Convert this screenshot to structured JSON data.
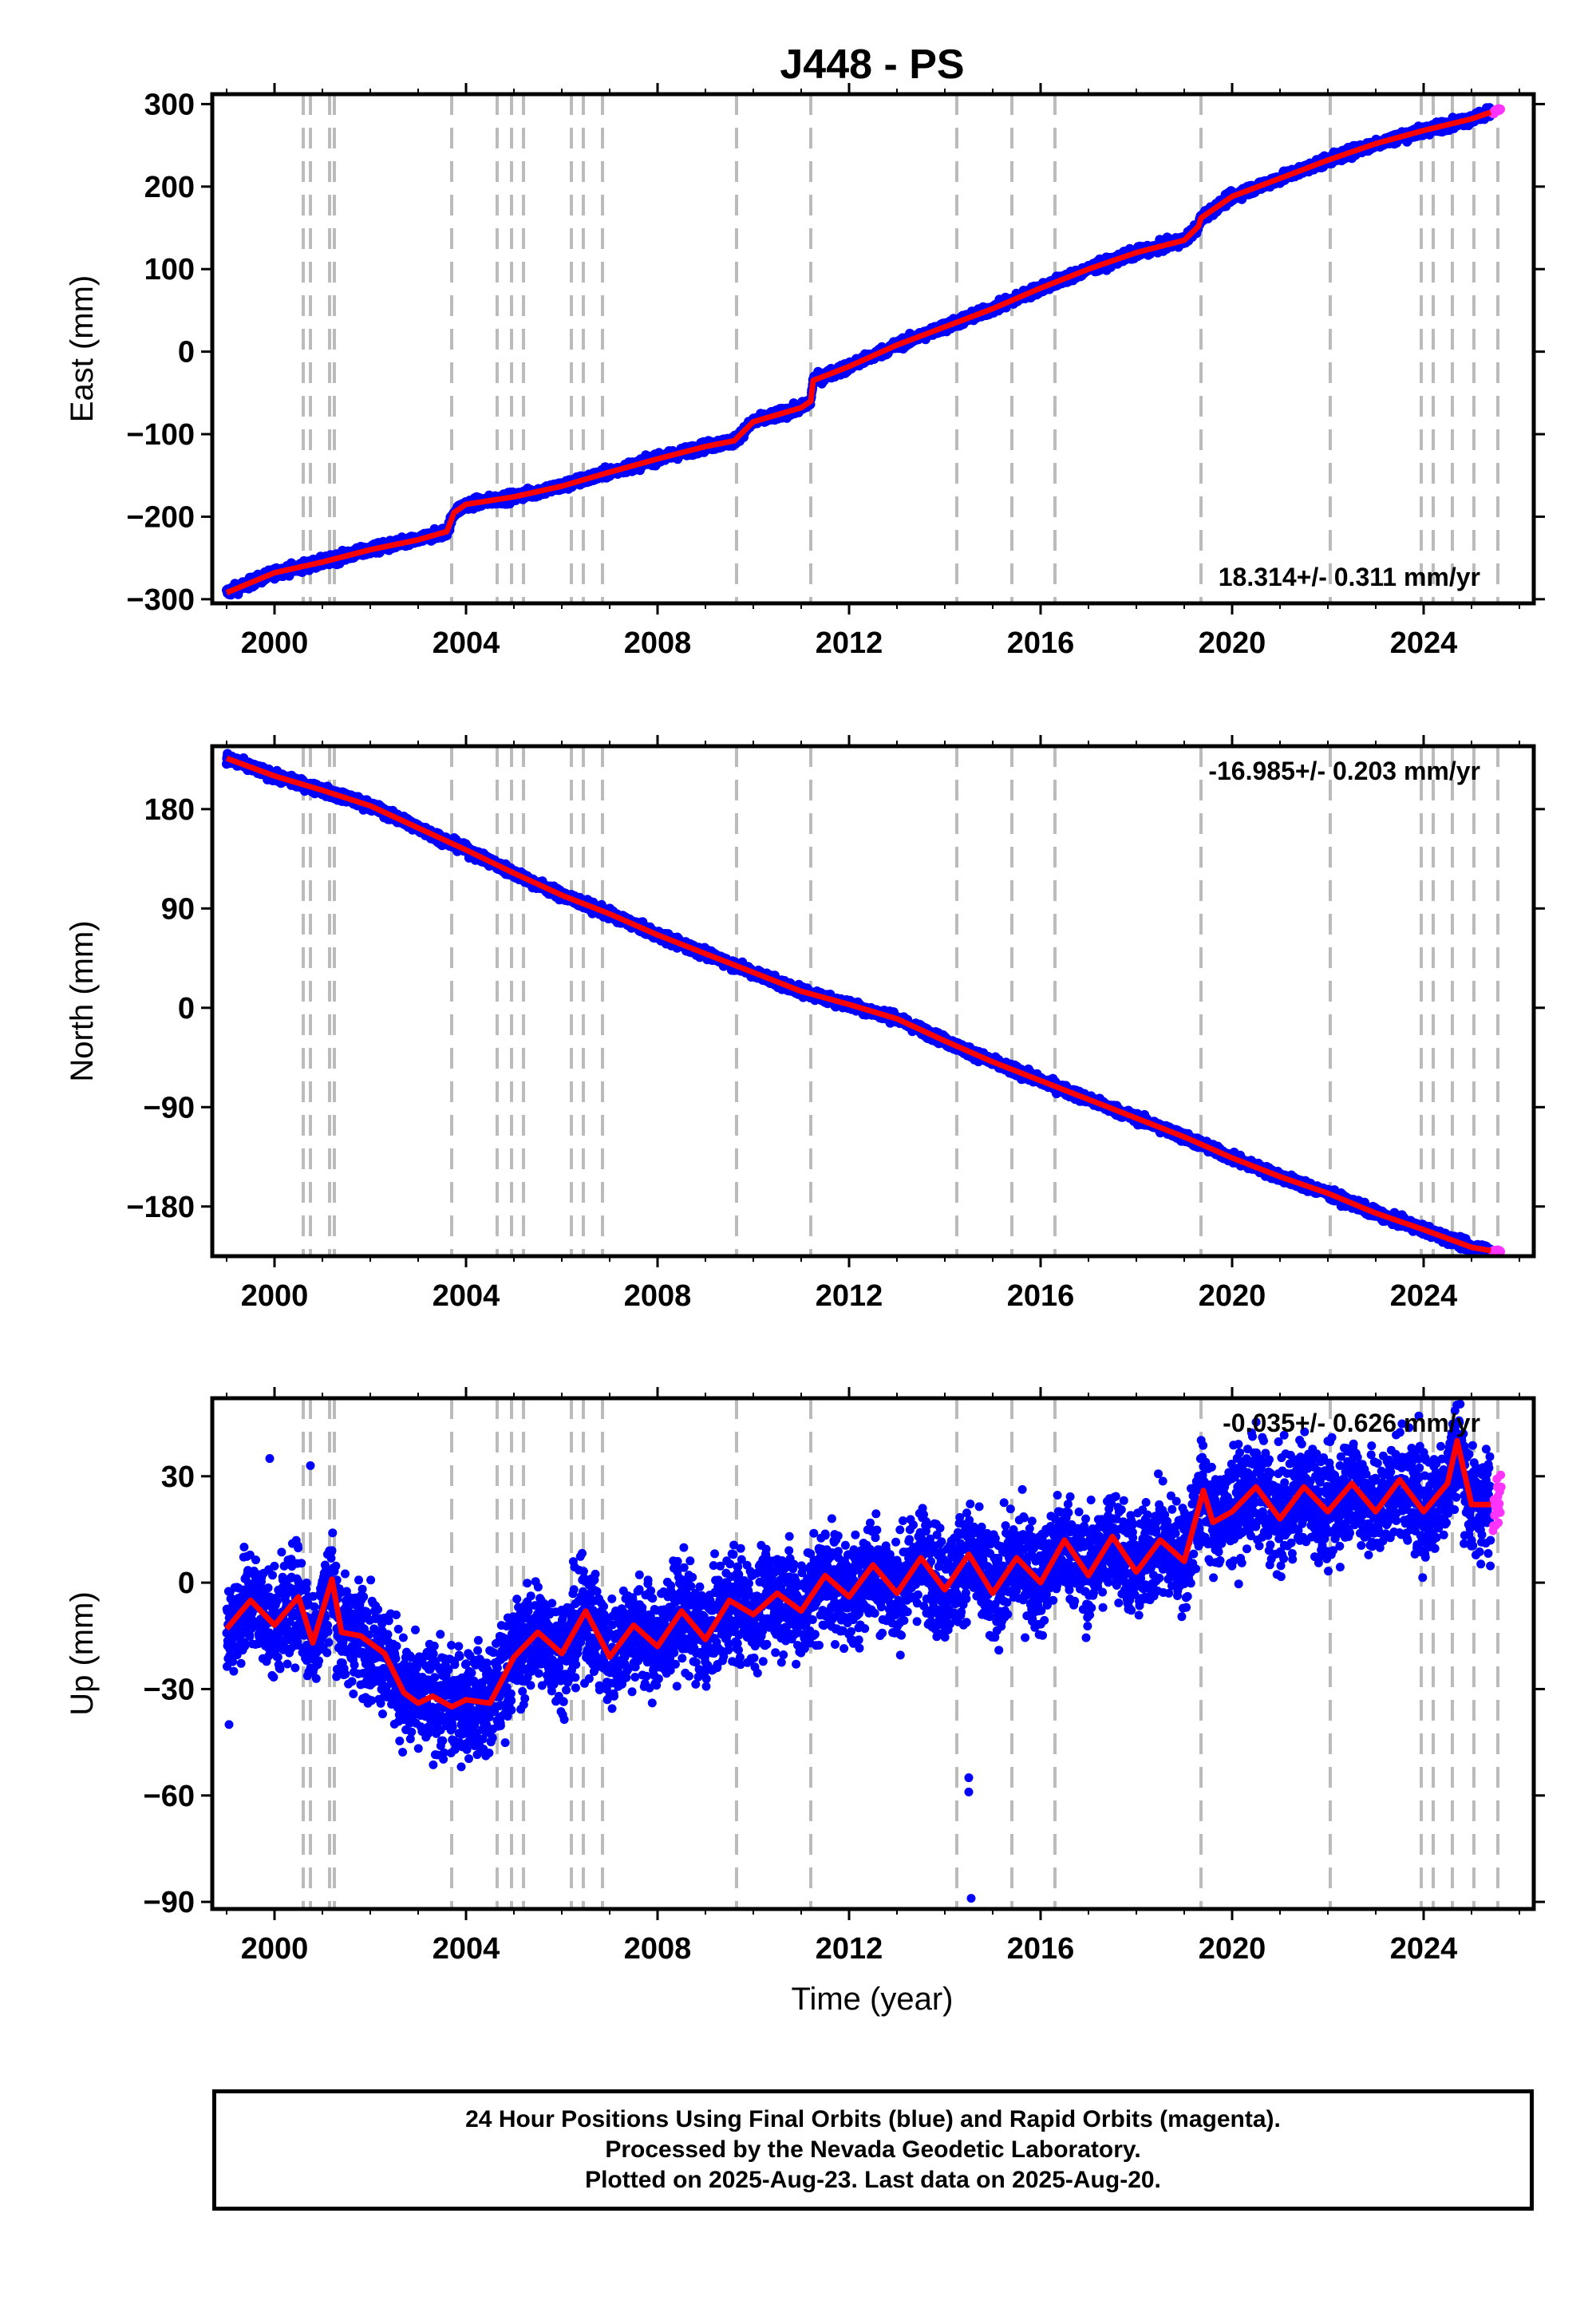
{
  "title": "J448 - PS",
  "xlabel": "Time (year)",
  "footer": [
    "24 Hour Positions Using Final Orbits (blue) and Rapid Orbits (magenta).",
    "Processed by the Nevada Geodetic Laboratory.",
    "Plotted on 2025-Aug-23. Last data on 2025-Aug-20."
  ],
  "colors": {
    "final": "#0000ff",
    "rapid": "#ff33ff",
    "model": "#ff0000",
    "event_lines": "#bbbbbb"
  },
  "chart_data": [
    {
      "type": "scatter",
      "ylabel": "East (mm)",
      "rate": "18.314+/- 0.311 mm/yr",
      "xlim": [
        1998.7,
        2026.3
      ],
      "ylim": [
        -305,
        312
      ],
      "x_ticks": [
        2000,
        2004,
        2008,
        2012,
        2016,
        2020,
        2024
      ],
      "y_ticks": [
        300,
        200,
        100,
        0,
        -100,
        -200,
        -300
      ],
      "event_lines": [
        2000.6,
        2000.75,
        2001.15,
        2001.25,
        2003.7,
        2004.65,
        2004.95,
        2005.2,
        2006.2,
        2006.45,
        2006.85,
        2009.65,
        2011.2,
        2014.25,
        2015.4,
        2016.3,
        2019.35,
        2022.05,
        2023.95,
        2024.2,
        2024.6,
        2025.05,
        2025.55
      ],
      "series": [
        {
          "name": "Final Orbits",
          "x": [
            1999.0,
            2000.0,
            2001.0,
            2002.0,
            2003.0,
            2003.6,
            2003.75,
            2004.0,
            2005.0,
            2006.0,
            2007.0,
            2008.0,
            2009.0,
            2009.6,
            2010.0,
            2011.0,
            2011.2,
            2011.25,
            2012.0,
            2013.0,
            2014.0,
            2015.0,
            2016.0,
            2017.0,
            2018.0,
            2019.0,
            2019.3,
            2019.35,
            2020.0,
            2021.0,
            2022.0,
            2023.0,
            2024.0,
            2025.0,
            2025.4
          ],
          "y": [
            -292,
            -268,
            -255,
            -240,
            -228,
            -218,
            -195,
            -185,
            -176,
            -163,
            -146,
            -130,
            -115,
            -108,
            -85,
            -68,
            -60,
            -35,
            -18,
            8,
            30,
            52,
            77,
            100,
            120,
            135,
            152,
            162,
            188,
            210,
            232,
            252,
            268,
            282,
            290
          ]
        },
        {
          "name": "Rapid Orbits",
          "x": [
            2025.45,
            2025.5,
            2025.55,
            2025.6
          ],
          "y": [
            290,
            292,
            293,
            294
          ]
        }
      ]
    },
    {
      "type": "scatter",
      "ylabel": "North (mm)",
      "rate": "-16.985+/- 0.203 mm/yr",
      "xlim": [
        1998.7,
        2026.3
      ],
      "ylim": [
        -225,
        237
      ],
      "x_ticks": [
        2000,
        2004,
        2008,
        2012,
        2016,
        2020,
        2024
      ],
      "y_ticks": [
        180,
        90,
        0,
        -90,
        -180
      ],
      "event_lines": [
        2000.6,
        2000.75,
        2001.15,
        2001.25,
        2003.7,
        2004.65,
        2004.95,
        2005.2,
        2006.2,
        2006.45,
        2006.85,
        2009.65,
        2011.2,
        2014.25,
        2015.4,
        2016.3,
        2019.35,
        2022.05,
        2023.95,
        2024.2,
        2024.6,
        2025.05,
        2025.55
      ],
      "series": [
        {
          "name": "Final Orbits",
          "x": [
            1999.0,
            2000.0,
            2001.0,
            2002.0,
            2003.0,
            2004.0,
            2005.0,
            2006.0,
            2007.0,
            2008.0,
            2009.0,
            2010.0,
            2011.0,
            2012.0,
            2013.0,
            2014.0,
            2015.0,
            2016.0,
            2017.0,
            2018.0,
            2019.0,
            2020.0,
            2021.0,
            2022.0,
            2023.0,
            2024.0,
            2025.0,
            2025.4
          ],
          "y": [
            226,
            210,
            197,
            183,
            163,
            143,
            122,
            102,
            85,
            66,
            49,
            32,
            15,
            3,
            -10,
            -30,
            -49,
            -66,
            -83,
            -100,
            -117,
            -136,
            -153,
            -168,
            -186,
            -201,
            -217,
            -220
          ]
        },
        {
          "name": "Rapid Orbits",
          "x": [
            2025.45,
            2025.5,
            2025.55,
            2025.6
          ],
          "y": [
            -220,
            -221,
            -221,
            -222
          ]
        }
      ]
    },
    {
      "type": "scatter",
      "ylabel": "Up (mm)",
      "rate": "-0.035+/- 0.626 mm/yr",
      "xlim": [
        1998.7,
        2026.3
      ],
      "ylim": [
        -92,
        52
      ],
      "x_ticks": [
        2000,
        2004,
        2008,
        2012,
        2016,
        2020,
        2024
      ],
      "y_ticks": [
        30,
        0,
        -30,
        -60,
        -90
      ],
      "event_lines": [
        2000.6,
        2000.75,
        2001.15,
        2001.25,
        2003.7,
        2004.65,
        2004.95,
        2005.2,
        2006.2,
        2006.45,
        2006.85,
        2009.65,
        2011.2,
        2014.25,
        2015.4,
        2016.3,
        2019.35,
        2022.05,
        2023.95,
        2024.2,
        2024.6,
        2025.05,
        2025.55
      ],
      "series": [
        {
          "name": "Final Orbits",
          "x": [
            1999.0,
            1999.5,
            2000.0,
            2000.5,
            2000.8,
            2001.2,
            2001.4,
            2001.8,
            2002.3,
            2002.7,
            2003.0,
            2003.3,
            2003.7,
            2004.0,
            2004.5,
            2005.0,
            2005.5,
            2006.0,
            2006.5,
            2007.0,
            2007.5,
            2008.0,
            2008.5,
            2009.0,
            2009.5,
            2010.0,
            2010.5,
            2011.0,
            2011.5,
            2012.0,
            2012.5,
            2013.0,
            2013.5,
            2014.0,
            2014.5,
            2015.0,
            2015.5,
            2016.0,
            2016.5,
            2017.0,
            2017.5,
            2018.0,
            2018.5,
            2019.0,
            2019.4,
            2019.6,
            2020.0,
            2020.5,
            2021.0,
            2021.5,
            2022.0,
            2022.5,
            2023.0,
            2023.5,
            2024.0,
            2024.5,
            2024.7,
            2025.0,
            2025.4
          ],
          "y": [
            -13,
            -5,
            -12,
            -4,
            -17,
            1,
            -14,
            -15,
            -20,
            -31,
            -34,
            -32,
            -35,
            -33,
            -34,
            -21,
            -14,
            -20,
            -8,
            -21,
            -12,
            -18,
            -8,
            -16,
            -5,
            -9,
            -3,
            -8,
            2,
            -4,
            5,
            -3,
            7,
            -2,
            8,
            -3,
            7,
            0,
            12,
            2,
            13,
            3,
            12,
            6,
            26,
            17,
            20,
            27,
            18,
            27,
            20,
            28,
            20,
            29,
            20,
            28,
            40,
            22,
            22
          ]
        },
        {
          "name": "Rapid Orbits",
          "x": [
            2025.45,
            2025.5,
            2025.55,
            2025.6,
            2025.62
          ],
          "y": [
            14,
            22,
            27,
            20,
            33
          ]
        }
      ]
    }
  ]
}
